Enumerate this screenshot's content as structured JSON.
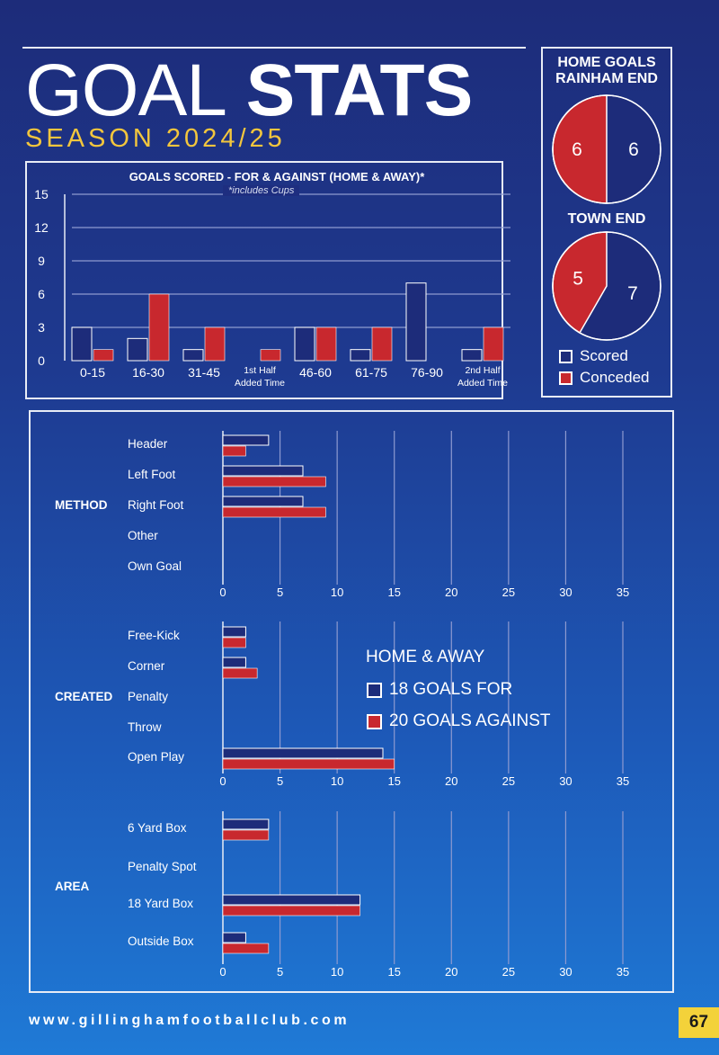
{
  "header": {
    "title_light": "GOAL",
    "title_bold": "STATS",
    "season": "SEASON 2024/25"
  },
  "colors": {
    "scored": "#1d2c7a",
    "conceded": "#c8282e",
    "accent": "#f3c63d"
  },
  "pies": {
    "home_goals_title": "HOME GOALS",
    "rainham_title": "RAINHAM END",
    "town_title": "TOWN END",
    "legend": {
      "scored": "Scored",
      "conceded": "Conceded"
    }
  },
  "home_away": {
    "title": "HOME & AWAY",
    "for": "18 GOALS FOR",
    "against": "20 GOALS AGAINST"
  },
  "footer": {
    "url": "www.gillinghamfootballclub.com",
    "page": "67"
  },
  "chart_data": [
    {
      "type": "bar",
      "title": "GOALS SCORED - FOR & AGAINST (HOME & AWAY)*",
      "note": "*includes Cups",
      "categories": [
        "0-15",
        "16-30",
        "31-45",
        "1st Half|Added Time",
        "46-60",
        "61-75",
        "76-90",
        "2nd Half|Added Time"
      ],
      "series": [
        {
          "name": "Scored",
          "values": [
            3,
            2,
            1,
            0,
            3,
            1,
            7,
            1
          ]
        },
        {
          "name": "Conceded",
          "values": [
            1,
            6,
            3,
            1,
            3,
            3,
            0,
            3
          ]
        }
      ],
      "ylim": [
        0,
        15
      ],
      "yticks": [
        0,
        3,
        6,
        9,
        12,
        15
      ],
      "grid": true
    },
    {
      "type": "pie",
      "title": "RAINHAM END",
      "labels": [
        "Scored",
        "Conceded"
      ],
      "values": [
        6,
        6
      ]
    },
    {
      "type": "pie",
      "title": "TOWN END",
      "labels": [
        "Scored",
        "Conceded"
      ],
      "values": [
        7,
        5
      ]
    },
    {
      "type": "bar",
      "orientation": "horizontal",
      "group": "METHOD",
      "categories": [
        "Header",
        "Left Foot",
        "Right Foot",
        "Other",
        "Own Goal"
      ],
      "series": [
        {
          "name": "Scored",
          "values": [
            4,
            7,
            7,
            0,
            0
          ]
        },
        {
          "name": "Conceded",
          "values": [
            2,
            9,
            9,
            0,
            0
          ]
        }
      ],
      "xlim": [
        0,
        35
      ],
      "xticks": [
        0,
        5,
        10,
        15,
        20,
        25,
        30,
        35
      ]
    },
    {
      "type": "bar",
      "orientation": "horizontal",
      "group": "CREATED",
      "categories": [
        "Free-Kick",
        "Corner",
        "Penalty",
        "Throw",
        "Open Play"
      ],
      "series": [
        {
          "name": "Scored",
          "values": [
            2,
            2,
            0,
            0,
            14
          ]
        },
        {
          "name": "Conceded",
          "values": [
            2,
            3,
            0,
            0,
            15
          ]
        }
      ],
      "xlim": [
        0,
        35
      ],
      "xticks": [
        0,
        5,
        10,
        15,
        20,
        25,
        30,
        35
      ]
    },
    {
      "type": "bar",
      "orientation": "horizontal",
      "group": "AREA",
      "categories": [
        "6 Yard Box",
        "Penalty Spot",
        "18 Yard Box",
        "Outside Box"
      ],
      "series": [
        {
          "name": "Scored",
          "values": [
            4,
            0,
            12,
            2
          ]
        },
        {
          "name": "Conceded",
          "values": [
            4,
            0,
            12,
            4
          ]
        }
      ],
      "xlim": [
        0,
        35
      ],
      "xticks": [
        0,
        5,
        10,
        15,
        20,
        25,
        30,
        35
      ]
    }
  ]
}
